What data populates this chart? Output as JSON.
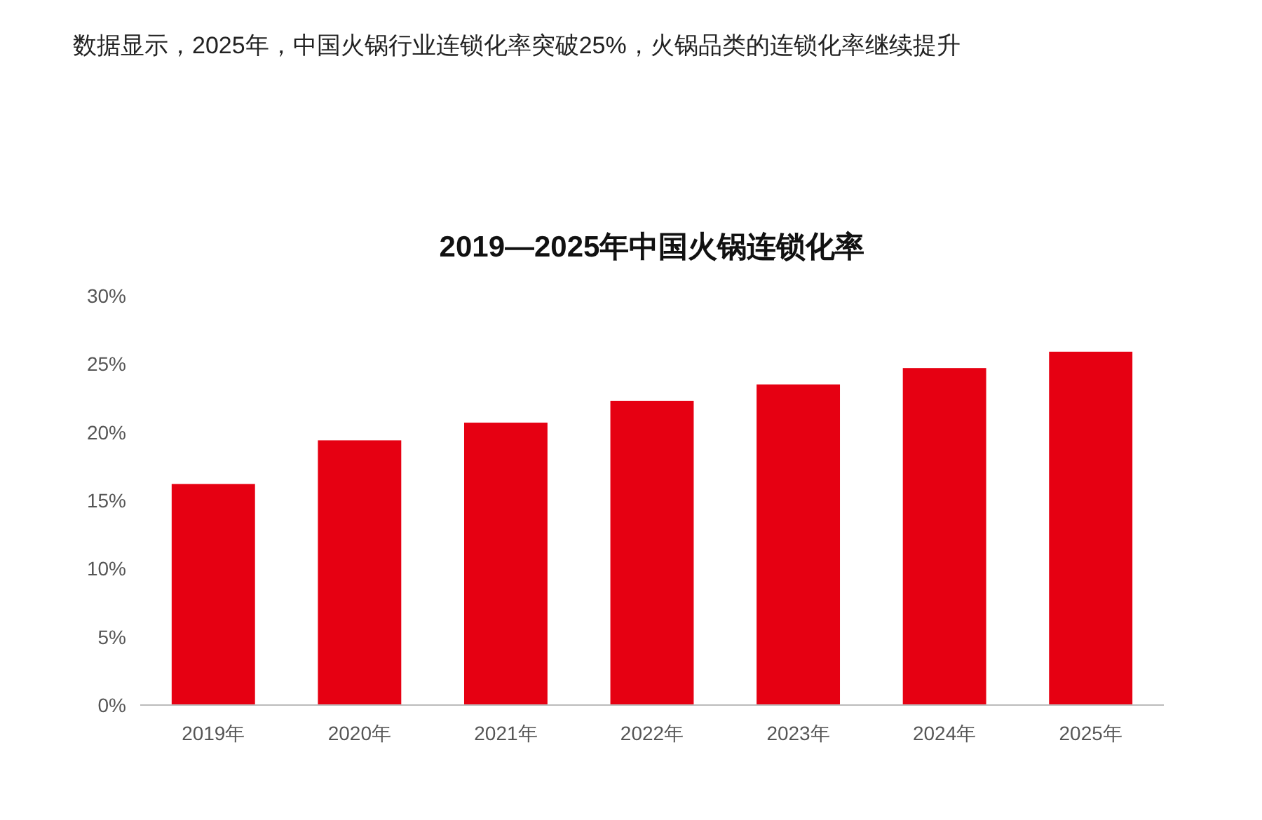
{
  "chart_data": {
    "type": "bar",
    "title": "2019—2025年中国火锅连锁化率",
    "subtitle": "数据显示，2025年，中国火锅行业连锁化率突破25%，火锅品类的连锁化率继续提升",
    "categories": [
      "2019年",
      "2020年",
      "2021年",
      "2022年",
      "2023年",
      "2024年",
      "2025年"
    ],
    "values": [
      16.2,
      19.4,
      20.7,
      22.3,
      23.5,
      24.7,
      25.9
    ],
    "color": "#e60012",
    "ylim": [
      0,
      30
    ],
    "yticks": [
      {
        "value": 0,
        "label": "0%"
      },
      {
        "value": 5,
        "label": "5%"
      },
      {
        "value": 10,
        "label": "10%"
      },
      {
        "value": 15,
        "label": "15%"
      },
      {
        "value": 20,
        "label": "20%"
      },
      {
        "value": 25,
        "label": "25%"
      },
      {
        "value": 30,
        "label": "30%"
      }
    ],
    "grid": false
  }
}
